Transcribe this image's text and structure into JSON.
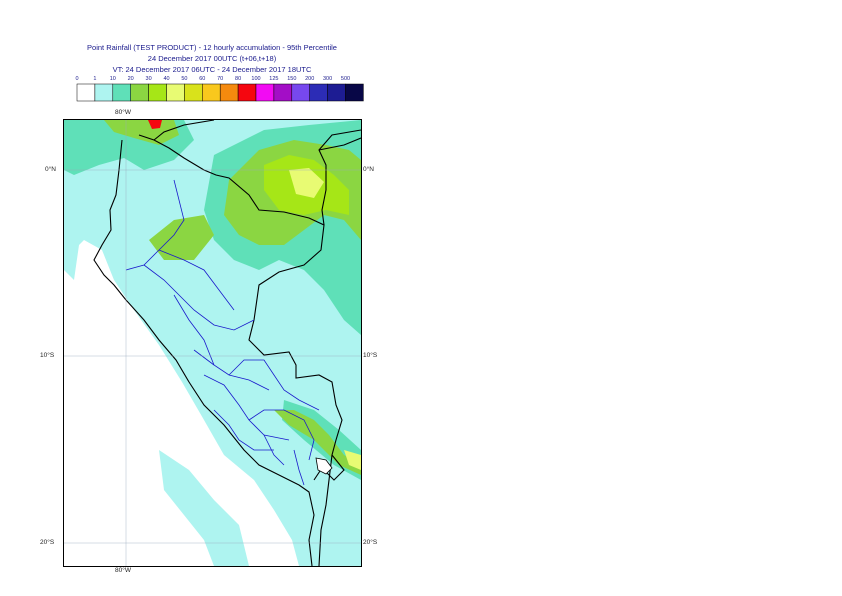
{
  "header": {
    "line1": "Point Rainfall (TEST PRODUCT) - 12 hourly accumulation - 95th Percentile",
    "line2": "24 December 2017 00UTC (t+06,t+18)",
    "line3": "VT: 24 December 2017 06UTC - 24 December 2017 18UTC"
  },
  "legend": {
    "thresholds": [
      "0",
      "1",
      "10",
      "20",
      "30",
      "40",
      "50",
      "60",
      "70",
      "80",
      "100",
      "125",
      "150",
      "200",
      "300",
      "500"
    ],
    "colors": [
      "#ffffff",
      "#aef4f0",
      "#5fe0b8",
      "#8bd642",
      "#a6e617",
      "#e8fb73",
      "#d9e21b",
      "#f9c81d",
      "#f58a0e",
      "#f5060f",
      "#f20bf3",
      "#a30ec6",
      "#7748ee",
      "#2c2cb6",
      "#1d1c93",
      "#080747"
    ]
  },
  "map": {
    "lon_labels": {
      "top": "80°W",
      "bottom": "80°W"
    },
    "lat_labels": [
      "0°N",
      "10°S",
      "20°S"
    ],
    "fill_colors": {
      "light": "#aef4f0",
      "medium": "#5fe0b8",
      "green": "#8bd642",
      "lime": "#a6e617",
      "yellow": "#e8fb73",
      "red": "#f5060f"
    }
  }
}
